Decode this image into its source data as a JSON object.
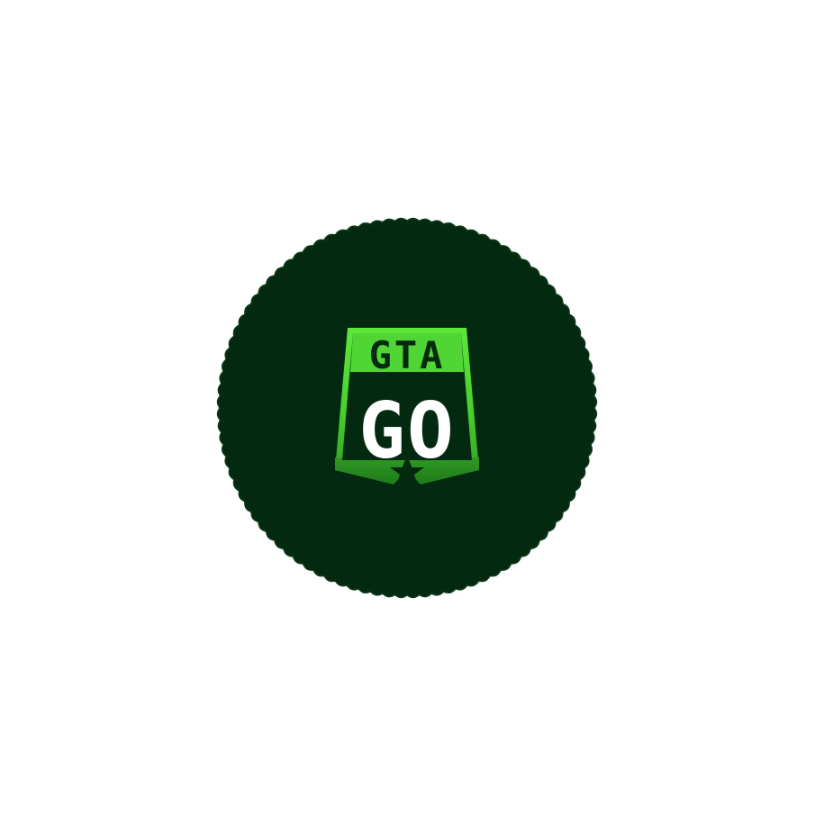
{
  "logo": {
    "line1": "GTA",
    "line2": "GO"
  },
  "colors": {
    "background": "#ffffff",
    "badge": "#032a10",
    "badge_edge": "#0f3a1c",
    "shield_light": "#5ee63a",
    "shield_mid": "#3fc02a",
    "shield_dark": "#1f7a18",
    "text_light": "#ffffff",
    "text_dark": "#032a10"
  },
  "icons": {
    "star": "star-icon",
    "shield": "shield-icon"
  }
}
